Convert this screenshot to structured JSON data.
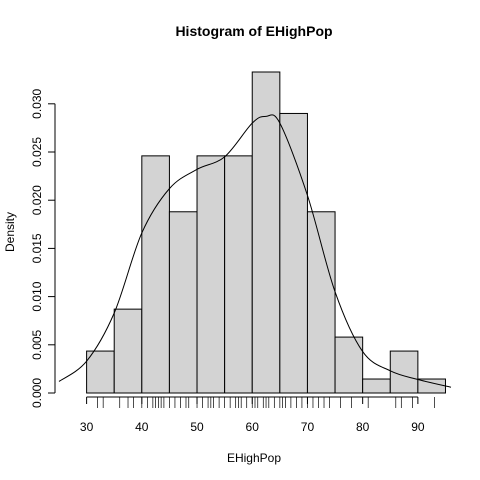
{
  "chart_data": {
    "type": "bar",
    "title": "Histogram of EHighPop",
    "xlabel": "EHighPop",
    "ylabel": "Density",
    "bins": [
      {
        "from": 30,
        "to": 35,
        "density": 0.00435
      },
      {
        "from": 35,
        "to": 40,
        "density": 0.0087
      },
      {
        "from": 40,
        "to": 45,
        "density": 0.0246
      },
      {
        "from": 45,
        "to": 50,
        "density": 0.0188
      },
      {
        "from": 50,
        "to": 55,
        "density": 0.0246
      },
      {
        "from": 55,
        "to": 60,
        "density": 0.0246
      },
      {
        "from": 60,
        "to": 65,
        "density": 0.0333
      },
      {
        "from": 65,
        "to": 70,
        "density": 0.029
      },
      {
        "from": 70,
        "to": 75,
        "density": 0.0188
      },
      {
        "from": 75,
        "to": 80,
        "density": 0.0058
      },
      {
        "from": 80,
        "to": 85,
        "density": 0.00145
      },
      {
        "from": 85,
        "to": 90,
        "density": 0.00435
      },
      {
        "from": 90,
        "to": 95,
        "density": 0.00145
      }
    ],
    "density_curve": {
      "x": [
        25,
        30,
        35,
        40,
        45,
        50,
        55,
        60,
        62.5,
        65,
        70,
        75,
        80,
        85,
        90,
        96
      ],
      "y": [
        0.0012,
        0.0033,
        0.0083,
        0.0166,
        0.0212,
        0.0232,
        0.0245,
        0.028,
        0.0287,
        0.028,
        0.0205,
        0.0105,
        0.0043,
        0.0023,
        0.0014,
        0.0006
      ]
    },
    "rug": [
      32,
      33,
      36,
      37.5,
      38.5,
      40,
      41,
      42,
      42.5,
      43,
      43.5,
      44,
      45,
      46,
      47,
      48,
      48.5,
      50,
      51,
      52,
      52.5,
      53,
      54,
      55,
      56,
      57,
      57.5,
      58,
      59,
      60,
      60.5,
      61,
      62,
      62.5,
      63,
      64,
      65,
      65.5,
      66,
      67,
      68,
      69,
      70,
      71,
      72,
      73,
      74,
      76,
      78,
      81,
      86,
      87,
      89,
      93
    ],
    "xlim": [
      25,
      96
    ],
    "ylim": [
      0,
      0.0333
    ],
    "x_ticks": [
      30,
      40,
      50,
      60,
      70,
      80,
      90
    ],
    "y_ticks": [
      0.0,
      0.005,
      0.01,
      0.015,
      0.02,
      0.025,
      0.03
    ],
    "x_tick_labels": [
      "30",
      "40",
      "50",
      "60",
      "70",
      "80",
      "90"
    ],
    "y_tick_labels": [
      "0.000",
      "0.005",
      "0.010",
      "0.015",
      "0.020",
      "0.025",
      "0.030"
    ],
    "bar_fill": "#d3d3d3",
    "bar_stroke": "#000000",
    "grid": false
  }
}
